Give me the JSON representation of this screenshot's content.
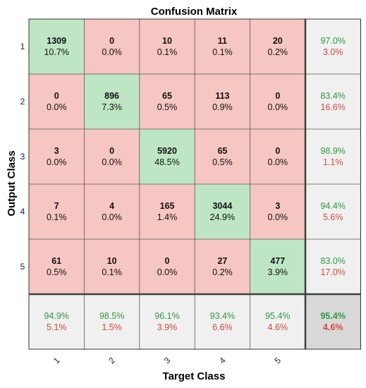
{
  "chart_data": {
    "type": "heatmap",
    "title": "Confusion Matrix",
    "xlabel": "Target Class",
    "ylabel": "Output Class",
    "classes": [
      "1",
      "2",
      "3",
      "4",
      "5"
    ],
    "counts": [
      [
        1309,
        0,
        10,
        11,
        20
      ],
      [
        0,
        896,
        65,
        113,
        0
      ],
      [
        3,
        0,
        5920,
        65,
        0
      ],
      [
        7,
        4,
        165,
        3044,
        3
      ],
      [
        61,
        10,
        0,
        27,
        477
      ]
    ],
    "percents": [
      [
        "10.7%",
        "0.0%",
        "0.1%",
        "0.1%",
        "0.2%"
      ],
      [
        "0.0%",
        "7.3%",
        "0.5%",
        "0.9%",
        "0.0%"
      ],
      [
        "0.0%",
        "0.0%",
        "48.5%",
        "0.5%",
        "0.0%"
      ],
      [
        "0.1%",
        "0.0%",
        "1.4%",
        "24.9%",
        "0.0%"
      ],
      [
        "0.5%",
        "0.1%",
        "0.0%",
        "0.2%",
        "3.9%"
      ]
    ],
    "row_summary": [
      {
        "correct": "97.0%",
        "wrong": "3.0%"
      },
      {
        "correct": "83.4%",
        "wrong": "16.6%"
      },
      {
        "correct": "98.9%",
        "wrong": "1.1%"
      },
      {
        "correct": "94.4%",
        "wrong": "5.6%"
      },
      {
        "correct": "83.0%",
        "wrong": "17.0%"
      }
    ],
    "column_summary": [
      {
        "correct": "94.9%",
        "wrong": "5.1%"
      },
      {
        "correct": "98.5%",
        "wrong": "1.5%"
      },
      {
        "correct": "96.1%",
        "wrong": "3.9%"
      },
      {
        "correct": "93.4%",
        "wrong": "6.6%"
      },
      {
        "correct": "95.4%",
        "wrong": "4.6%"
      }
    ],
    "overall": {
      "correct": "95.4%",
      "wrong": "4.6%"
    },
    "colors": {
      "diagonal": "#bfe6c4",
      "off_diagonal": "#f5c6c2",
      "summary": "#f0f0f0",
      "overall": "#d9d9d9",
      "good_text": "#2e9a3e",
      "bad_text": "#d04a3e"
    }
  }
}
